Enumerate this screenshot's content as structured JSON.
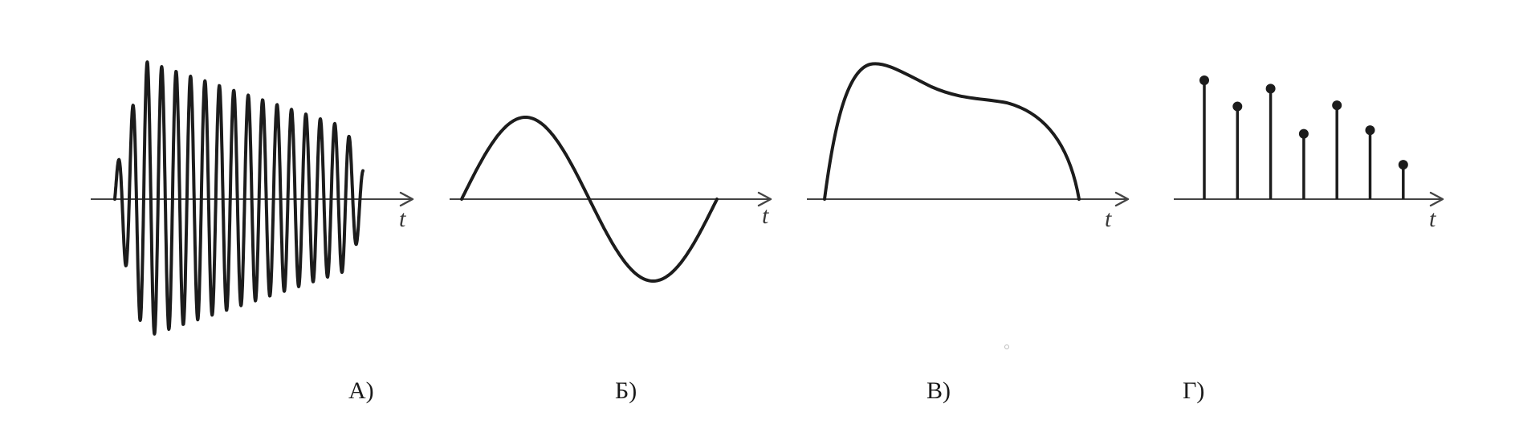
{
  "panels": [
    {
      "id": "A",
      "caption": "А)",
      "axis_label": "t",
      "signal_kind": "amplitude-modulated oscillation"
    },
    {
      "id": "B",
      "caption": "Б)",
      "axis_label": "t",
      "signal_kind": "single sine period"
    },
    {
      "id": "V",
      "caption": "В)",
      "axis_label": "t",
      "signal_kind": "single pulse"
    },
    {
      "id": "G",
      "caption": "Г)",
      "axis_label": "t",
      "signal_kind": "discrete samples",
      "sample_values": [
        1.0,
        0.78,
        0.93,
        0.55,
        0.79,
        0.58,
        0.29
      ]
    }
  ],
  "colors": {
    "signal": "#1c1c1c",
    "axis": "#444444",
    "background": "#ffffff"
  }
}
